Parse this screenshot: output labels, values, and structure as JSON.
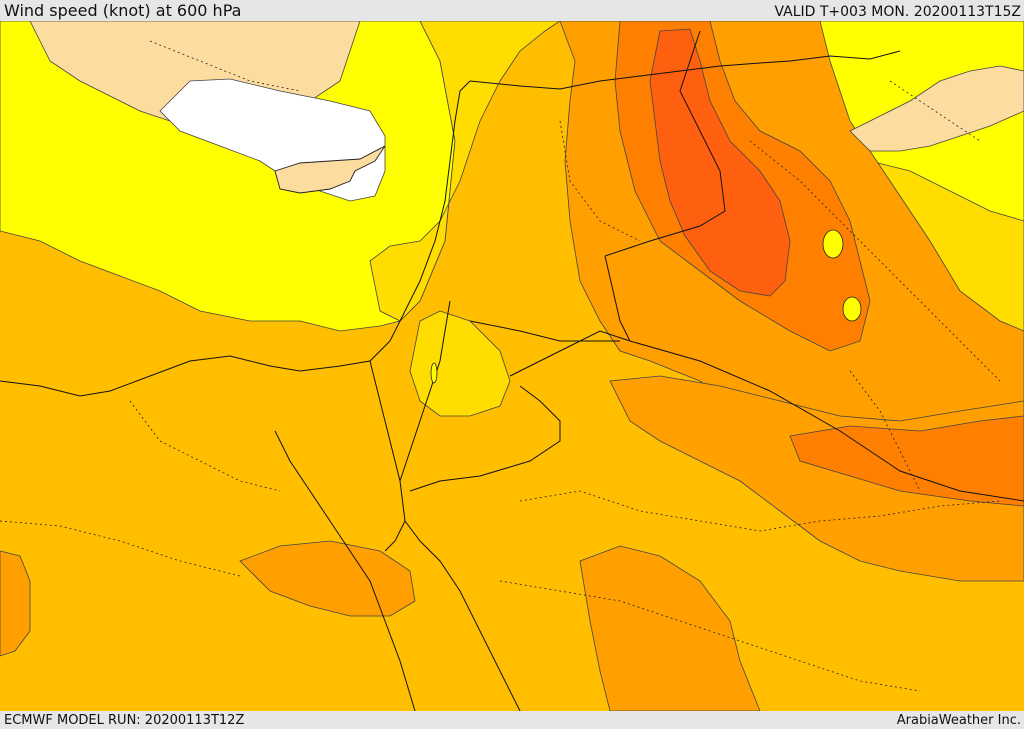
{
  "header": {
    "title": "Wind speed (knot) at 600 hPa",
    "valid": "VALID T+003 MON. 20200113T15Z"
  },
  "footer": {
    "model_run": "ECMWF MODEL RUN: 20200113T12Z",
    "credit": "ArabiaWeather Inc."
  },
  "map": {
    "variable": "Wind speed",
    "level": "600 hPa",
    "units": "knot",
    "fill_colors": {
      "white": "#ffffff",
      "peach": "#fddca0",
      "yellow": "#ffff00",
      "gold": "#ffdd00",
      "amber": "#ffbf00",
      "orange": "#ff9f00",
      "dark_orange": "#ff8000",
      "red_orange": "#ff6010"
    },
    "line_color": "#000000"
  }
}
